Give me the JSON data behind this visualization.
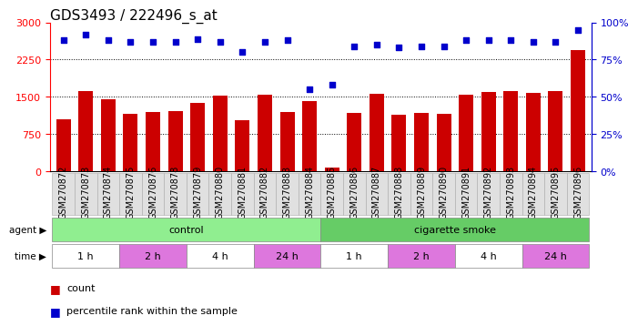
{
  "title": "GDS3493 / 222496_s_at",
  "samples": [
    "GSM270872",
    "GSM270873",
    "GSM270874",
    "GSM270875",
    "GSM270876",
    "GSM270878",
    "GSM270879",
    "GSM270880",
    "GSM270881",
    "GSM270882",
    "GSM270883",
    "GSM270884",
    "GSM270885",
    "GSM270886",
    "GSM270887",
    "GSM270888",
    "GSM270889",
    "GSM270890",
    "GSM270891",
    "GSM270892",
    "GSM270893",
    "GSM270894",
    "GSM270895",
    "GSM270896"
  ],
  "counts": [
    1050,
    1620,
    1450,
    1150,
    1200,
    1220,
    1380,
    1530,
    1030,
    1540,
    1200,
    1420,
    80,
    1180,
    1560,
    1130,
    1180,
    1150,
    1540,
    1600,
    1610,
    1580,
    1610,
    2450
  ],
  "percentile_ranks": [
    88,
    92,
    88,
    87,
    87,
    87,
    89,
    87,
    80,
    87,
    88,
    55,
    58,
    84,
    85,
    83,
    84,
    84,
    88,
    88,
    88,
    87,
    87,
    95
  ],
  "bar_color": "#cc0000",
  "dot_color": "#0000cc",
  "ylim_left": [
    0,
    3000
  ],
  "ylim_right": [
    0,
    100
  ],
  "yticks_left": [
    0,
    750,
    1500,
    2250,
    3000
  ],
  "yticks_right": [
    0,
    25,
    50,
    75,
    100
  ],
  "agent_groups": [
    {
      "label": "control",
      "start": 0,
      "end": 12,
      "color": "#90ee90"
    },
    {
      "label": "cigarette smoke",
      "start": 12,
      "end": 24,
      "color": "#66cc66"
    }
  ],
  "time_groups": [
    {
      "label": "1 h",
      "start": 0,
      "end": 3,
      "color": "#ffffff"
    },
    {
      "label": "2 h",
      "start": 3,
      "end": 6,
      "color": "#dd77dd"
    },
    {
      "label": "4 h",
      "start": 6,
      "end": 9,
      "color": "#ffffff"
    },
    {
      "label": "24 h",
      "start": 9,
      "end": 12,
      "color": "#dd77dd"
    },
    {
      "label": "1 h",
      "start": 12,
      "end": 15,
      "color": "#ffffff"
    },
    {
      "label": "2 h",
      "start": 15,
      "end": 18,
      "color": "#dd77dd"
    },
    {
      "label": "4 h",
      "start": 18,
      "end": 21,
      "color": "#ffffff"
    },
    {
      "label": "24 h",
      "start": 21,
      "end": 24,
      "color": "#dd77dd"
    }
  ],
  "agent_label": "agent",
  "time_label": "time",
  "legend_count_label": "count",
  "legend_pct_label": "percentile rank within the sample",
  "bg_color": "#ffffff",
  "title_fontsize": 11,
  "tick_fontsize": 7,
  "bar_width": 0.65
}
